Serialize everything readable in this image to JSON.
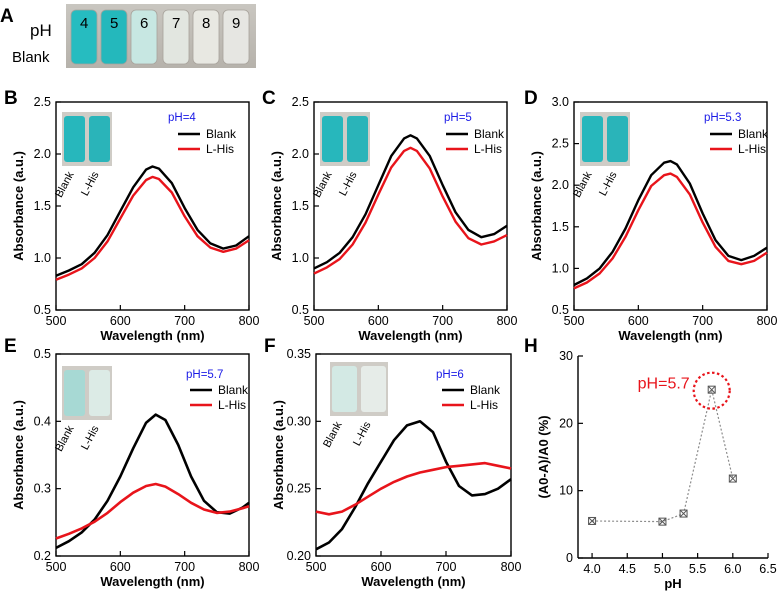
{
  "figure_panels": {
    "A": "A",
    "B": "B",
    "C": "C",
    "D": "D",
    "E": "E",
    "F": "F",
    "H": "H"
  },
  "photo_A": {
    "row_label": "pH",
    "blank_label": "Blank",
    "vial_ph_values": [
      "4",
      "5",
      "6",
      "7",
      "8",
      "9"
    ],
    "vial_colors": [
      "#26bcc0",
      "#24b8bc",
      "#c7e7e2",
      "#e2e6e0",
      "#e8e8e2",
      "#e6e6e2"
    ]
  },
  "inset_vial_labels": [
    "Blank",
    "L-His"
  ],
  "colors": {
    "blank_line": "#000000",
    "lhis_line": "#e8141b",
    "ph_text": "#1a1ae6",
    "highlight": "#e8141b",
    "cyan": "#26bcc0"
  },
  "chart_data": [
    {
      "panel": "B",
      "type": "line",
      "annotation": "pH=4",
      "xlabel": "Wavelength (nm)",
      "ylabel": "Absorbance (a.u.)",
      "xlim": [
        500,
        800
      ],
      "ylim": [
        0.5,
        2.5
      ],
      "xticks": [
        "500",
        "600",
        "700",
        "800"
      ],
      "yticks": [
        "0.5",
        "1.0",
        "1.5",
        "2.0",
        "2.5"
      ],
      "series": [
        {
          "name": "Blank",
          "color": "#000000",
          "x": [
            500,
            520,
            540,
            560,
            580,
            600,
            620,
            640,
            650,
            660,
            680,
            700,
            720,
            740,
            760,
            780,
            800
          ],
          "values": [
            0.83,
            0.88,
            0.94,
            1.05,
            1.22,
            1.45,
            1.68,
            1.85,
            1.88,
            1.86,
            1.72,
            1.48,
            1.27,
            1.14,
            1.09,
            1.12,
            1.21
          ]
        },
        {
          "name": "L-His",
          "color": "#e8141b",
          "x": [
            500,
            520,
            540,
            560,
            580,
            600,
            620,
            640,
            650,
            660,
            680,
            700,
            720,
            740,
            760,
            780,
            800
          ],
          "values": [
            0.79,
            0.84,
            0.9,
            1.0,
            1.16,
            1.38,
            1.6,
            1.75,
            1.78,
            1.76,
            1.63,
            1.4,
            1.21,
            1.1,
            1.06,
            1.09,
            1.17
          ]
        }
      ]
    },
    {
      "panel": "C",
      "type": "line",
      "annotation": "pH=5",
      "xlabel": "Wavelength (nm)",
      "ylabel": "Absorbance (a.u.)",
      "xlim": [
        500,
        800
      ],
      "ylim": [
        0.5,
        2.5
      ],
      "xticks": [
        "500",
        "600",
        "700",
        "800"
      ],
      "yticks": [
        "0.5",
        "1.0",
        "1.5",
        "2.0",
        "2.5"
      ],
      "series": [
        {
          "name": "Blank",
          "color": "#000000",
          "x": [
            500,
            520,
            540,
            560,
            580,
            600,
            620,
            640,
            650,
            660,
            680,
            700,
            720,
            740,
            760,
            780,
            800
          ],
          "values": [
            0.9,
            0.96,
            1.05,
            1.2,
            1.42,
            1.7,
            1.98,
            2.15,
            2.18,
            2.15,
            1.98,
            1.7,
            1.44,
            1.27,
            1.2,
            1.23,
            1.31
          ]
        },
        {
          "name": "L-His",
          "color": "#e8141b",
          "x": [
            500,
            520,
            540,
            560,
            580,
            600,
            620,
            640,
            650,
            660,
            680,
            700,
            720,
            740,
            760,
            780,
            800
          ],
          "values": [
            0.85,
            0.91,
            0.99,
            1.13,
            1.34,
            1.61,
            1.87,
            2.03,
            2.06,
            2.03,
            1.86,
            1.59,
            1.35,
            1.19,
            1.13,
            1.16,
            1.22
          ]
        }
      ]
    },
    {
      "panel": "D",
      "type": "line",
      "annotation": "pH=5.3",
      "xlabel": "Wavelength (nm)",
      "ylabel": "Absorbance (a.u.)",
      "xlim": [
        500,
        800
      ],
      "ylim": [
        0.5,
        3.0
      ],
      "xticks": [
        "500",
        "600",
        "700",
        "800"
      ],
      "yticks": [
        "0.5",
        "1.0",
        "1.5",
        "2.0",
        "2.5",
        "3.0"
      ],
      "series": [
        {
          "name": "Blank",
          "color": "#000000",
          "x": [
            500,
            520,
            540,
            560,
            580,
            600,
            620,
            640,
            650,
            660,
            680,
            700,
            720,
            740,
            760,
            780,
            800
          ],
          "values": [
            0.8,
            0.88,
            1.0,
            1.2,
            1.48,
            1.82,
            2.12,
            2.27,
            2.29,
            2.25,
            2.02,
            1.66,
            1.34,
            1.15,
            1.1,
            1.15,
            1.25
          ]
        },
        {
          "name": "L-His",
          "color": "#e8141b",
          "x": [
            500,
            520,
            540,
            560,
            580,
            600,
            620,
            640,
            650,
            660,
            680,
            700,
            720,
            740,
            760,
            780,
            800
          ],
          "values": [
            0.76,
            0.83,
            0.94,
            1.12,
            1.38,
            1.7,
            1.99,
            2.12,
            2.14,
            2.1,
            1.89,
            1.55,
            1.26,
            1.09,
            1.05,
            1.09,
            1.19
          ]
        }
      ]
    },
    {
      "panel": "E",
      "type": "line",
      "annotation": "pH=5.7",
      "xlabel": "Wavelength (nm)",
      "ylabel": "Absorbance (a.u.)",
      "xlim": [
        500,
        800
      ],
      "ylim": [
        0.2,
        0.5
      ],
      "xticks": [
        "500",
        "600",
        "700",
        "800"
      ],
      "yticks": [
        "0.2",
        "0.3",
        "0.4",
        "0.5"
      ],
      "series": [
        {
          "name": "Blank",
          "color": "#000000",
          "x": [
            500,
            520,
            540,
            560,
            580,
            600,
            620,
            640,
            655,
            670,
            690,
            710,
            730,
            750,
            770,
            790,
            800
          ],
          "values": [
            0.212,
            0.222,
            0.235,
            0.254,
            0.282,
            0.318,
            0.36,
            0.398,
            0.41,
            0.402,
            0.365,
            0.318,
            0.282,
            0.265,
            0.263,
            0.272,
            0.279
          ]
        },
        {
          "name": "L-His",
          "color": "#e8141b",
          "x": [
            500,
            520,
            540,
            560,
            580,
            600,
            620,
            640,
            655,
            670,
            690,
            710,
            730,
            750,
            770,
            790,
            800
          ],
          "values": [
            0.226,
            0.233,
            0.241,
            0.251,
            0.264,
            0.28,
            0.294,
            0.304,
            0.307,
            0.303,
            0.292,
            0.279,
            0.269,
            0.264,
            0.266,
            0.271,
            0.274
          ]
        }
      ]
    },
    {
      "panel": "F",
      "type": "line",
      "annotation": "pH=6",
      "xlabel": "Wavelength (nm)",
      "ylabel": "Absorbance (a.u.)",
      "xlim": [
        500,
        800
      ],
      "ylim": [
        0.2,
        0.35
      ],
      "xticks": [
        "500",
        "600",
        "700",
        "800"
      ],
      "yticks": [
        "0.20",
        "0.25",
        "0.30",
        "0.35"
      ],
      "series": [
        {
          "name": "Blank",
          "color": "#000000",
          "x": [
            500,
            520,
            540,
            560,
            580,
            600,
            620,
            640,
            660,
            680,
            700,
            720,
            740,
            760,
            780,
            800
          ],
          "values": [
            0.205,
            0.21,
            0.22,
            0.236,
            0.254,
            0.27,
            0.286,
            0.297,
            0.3,
            0.292,
            0.27,
            0.252,
            0.245,
            0.246,
            0.25,
            0.257
          ]
        },
        {
          "name": "L-His",
          "color": "#e8141b",
          "x": [
            500,
            520,
            540,
            560,
            580,
            600,
            620,
            640,
            660,
            680,
            700,
            720,
            740,
            760,
            780,
            800
          ],
          "values": [
            0.233,
            0.231,
            0.233,
            0.238,
            0.244,
            0.25,
            0.255,
            0.259,
            0.262,
            0.264,
            0.266,
            0.267,
            0.268,
            0.269,
            0.267,
            0.265
          ]
        }
      ]
    },
    {
      "panel": "H",
      "type": "scatter",
      "xlabel": "pH",
      "ylabel": "(A0-A)/A0 (%)",
      "xlim": [
        3.8,
        6.5
      ],
      "ylim": [
        0,
        30
      ],
      "xticks": [
        "4.0",
        "4.5",
        "5.0",
        "5.5",
        "6.0",
        "6.5"
      ],
      "yticks": [
        "0",
        "10",
        "20",
        "30"
      ],
      "x": [
        4.0,
        5.0,
        5.3,
        5.7,
        6.0
      ],
      "values": [
        5.5,
        5.4,
        6.6,
        25.0,
        11.8
      ],
      "annotation": "pH=5.7"
    }
  ]
}
